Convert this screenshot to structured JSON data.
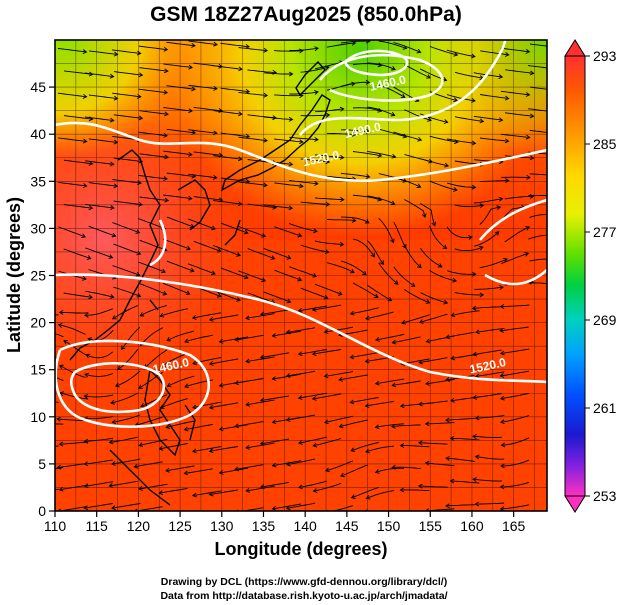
{
  "title": "GSM 18Z27Aug2025 (850.0hPa)",
  "x_axis": {
    "label": "Longitude (degrees)",
    "range": [
      110,
      169
    ],
    "ticks": [
      "110",
      "115",
      "120",
      "125",
      "130",
      "135",
      "140",
      "145",
      "150",
      "155",
      "160",
      "165"
    ]
  },
  "y_axis": {
    "label": "Latitude  (degrees)",
    "range": [
      0,
      50
    ],
    "ticks": [
      "0",
      "5",
      "10",
      "15",
      "20",
      "25",
      "30",
      "35",
      "40",
      "45"
    ]
  },
  "colorbar": {
    "ticks": [
      "293",
      "285",
      "277",
      "269",
      "261",
      "253"
    ],
    "min": 253,
    "max": 293
  },
  "contour_labels": [
    {
      "text": "1460.0",
      "lon": 150,
      "lat": 45
    },
    {
      "text": "1490.0",
      "lon": 147,
      "lat": 40
    },
    {
      "text": "1520.0",
      "lon": 142,
      "lat": 37
    },
    {
      "text": "1520.0",
      "lon": 162,
      "lat": 15
    },
    {
      "text": "1460.0",
      "lon": 124,
      "lat": 15
    }
  ],
  "credits": {
    "line1": "Drawing by DCL (https://www.gfd-dennou.org/library/dcl/)",
    "line2": "Data from http://database.rish.kyoto-u.ac.jp/arch/jmadata/"
  },
  "colors": {
    "warm": "#ff3b00",
    "hot": "#ff5a55",
    "mid": "#ff9a00",
    "yellow": "#f0e000",
    "green": "#7ad800",
    "contour": "#ffffff"
  }
}
